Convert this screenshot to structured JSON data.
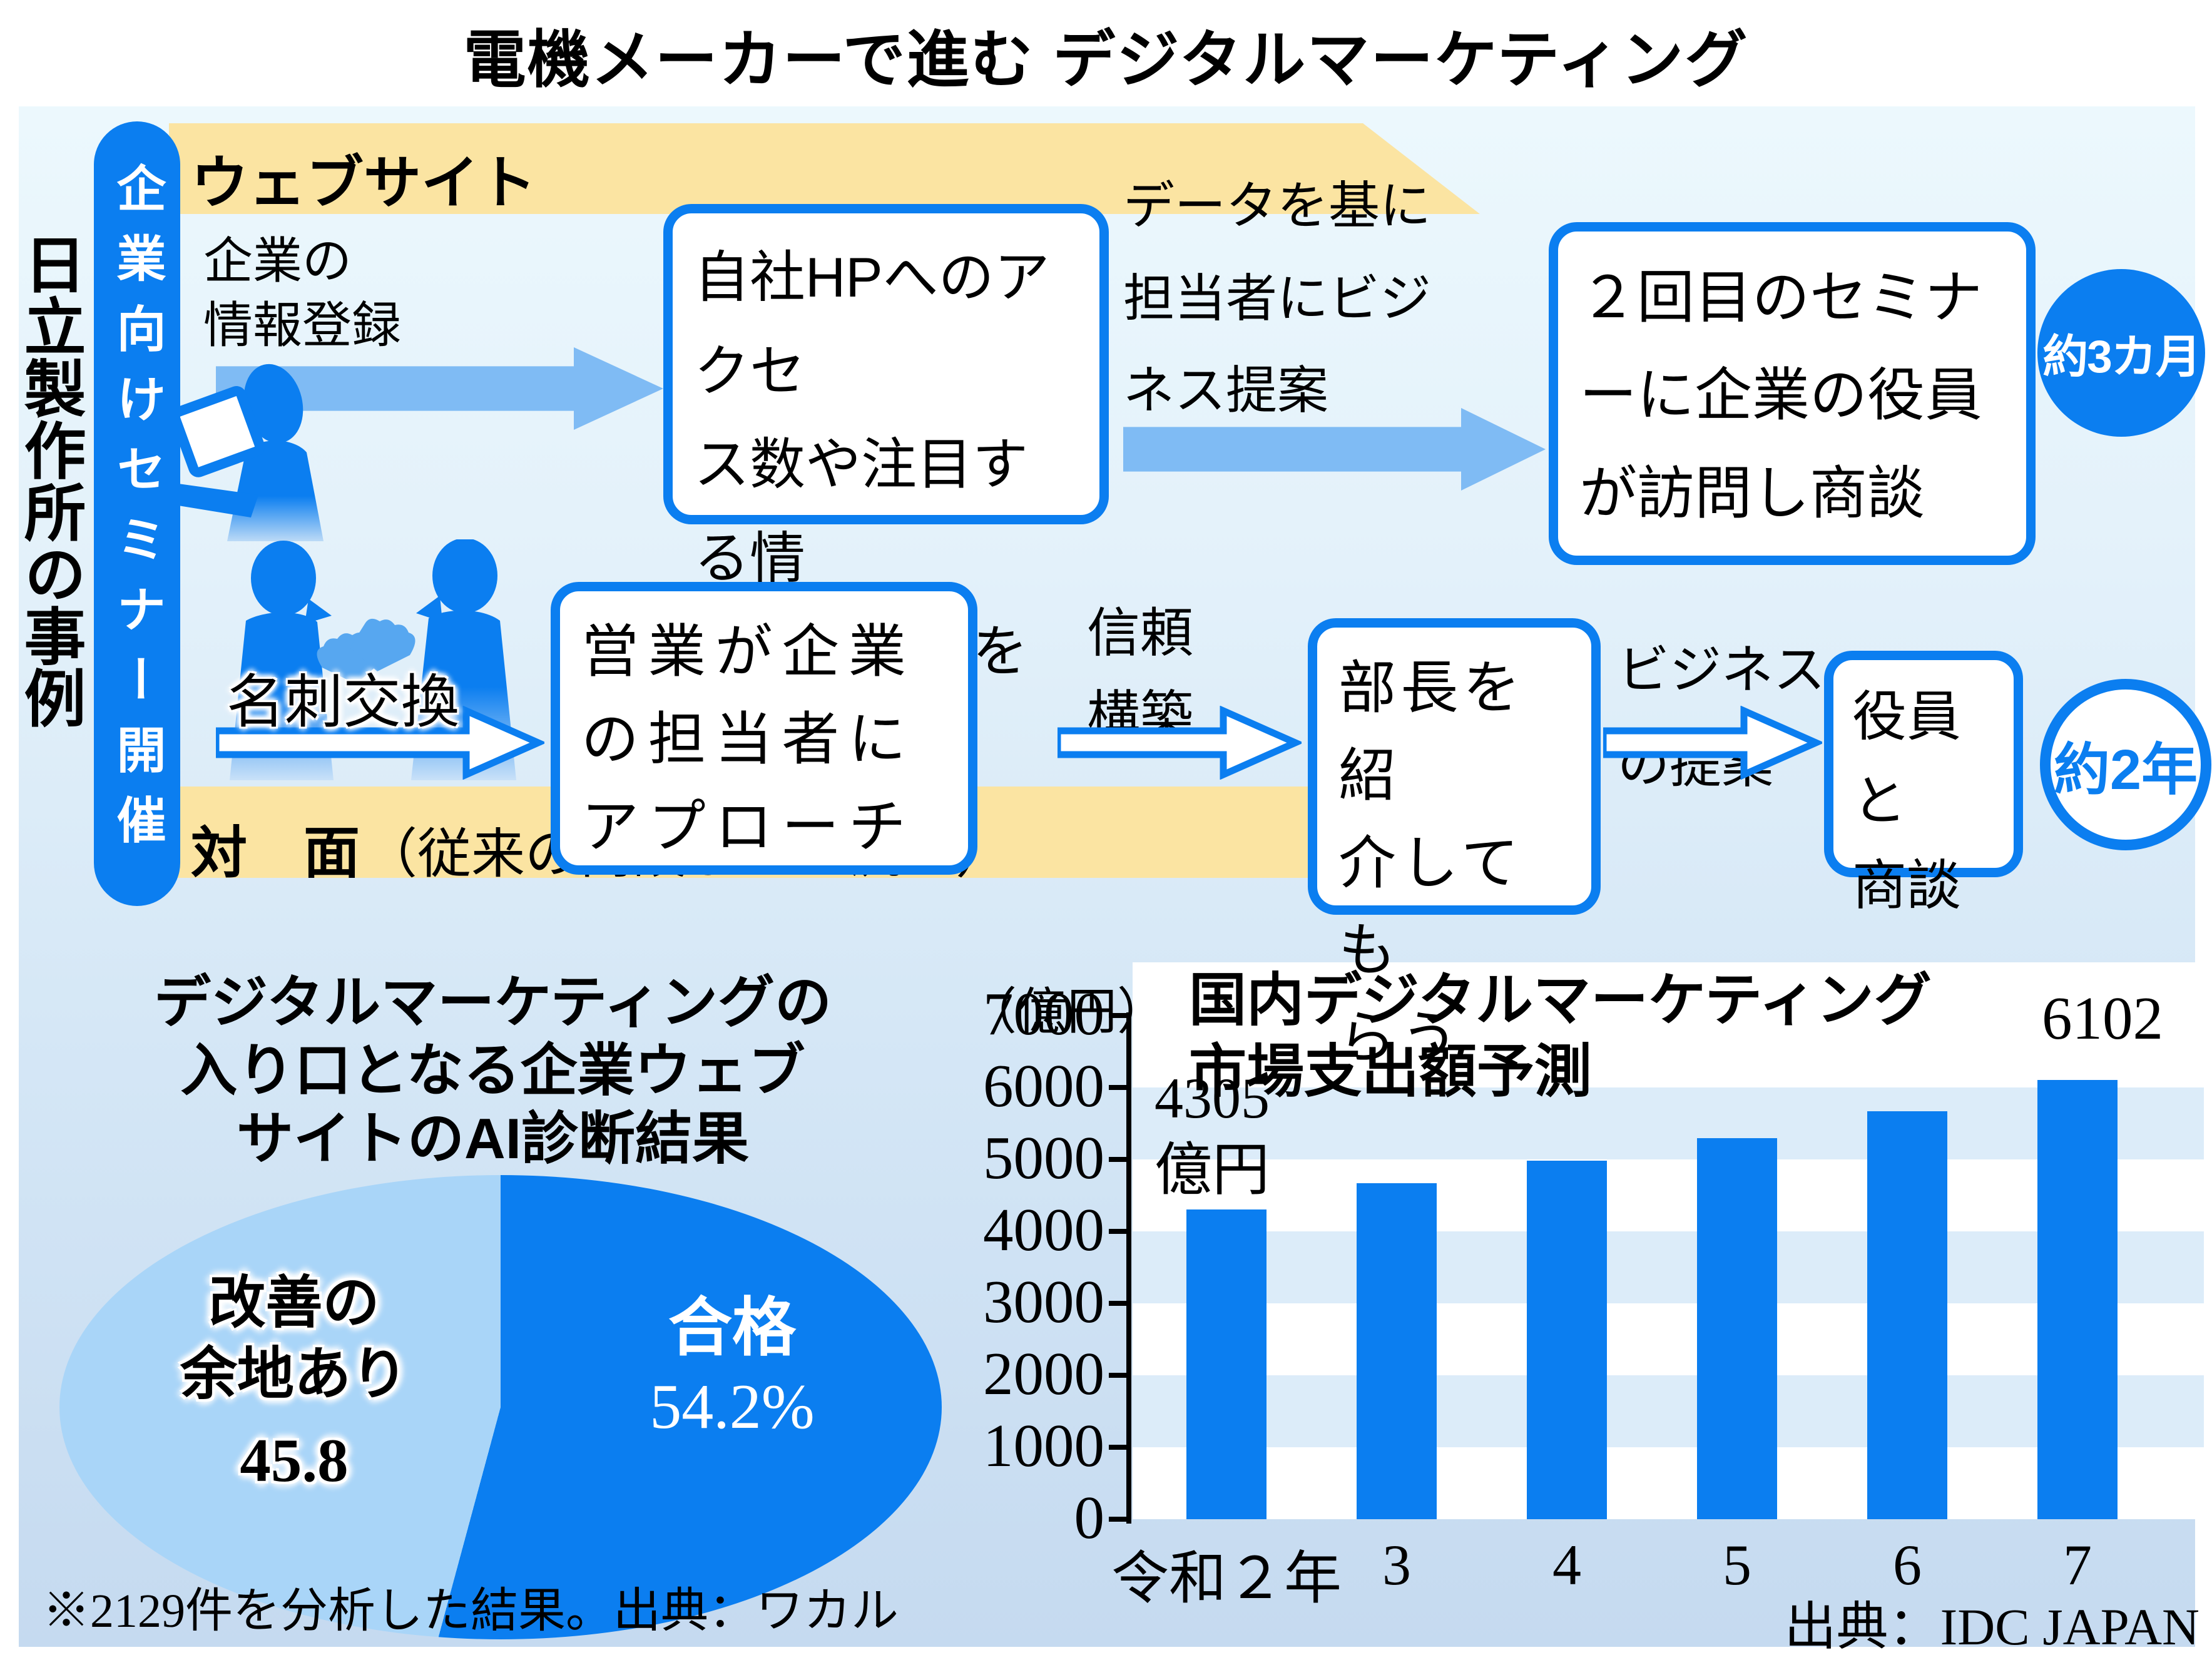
{
  "colors": {
    "primary": "#0b7ef0",
    "arrow_light": "#7fbbf4",
    "yellow": "#fbe4a2",
    "stripe": "#dcecf9",
    "pie_light": "#a9d5f8",
    "bg_top": "#ecf8fd",
    "bg_bottom": "#c5daf0"
  },
  "title": "電機メーカーで進む デジタルマーケティング",
  "case_label": "日立製作所の事例",
  "seminar_pill": "企業向けセミナー開催",
  "web_flow": {
    "band_label": "ウェブサイト",
    "step1_label": "企業の\n情報登録",
    "box1": "自社HPへのアクセ\nス数や注目する情\n報のデータを収集",
    "arrow2_label": "データを基に\n担当者にビジ\nネス提案",
    "box2": "２回目のセミナ\nーに企業の役員\nが訪問し商談",
    "duration": "約3カ月"
  },
  "face_flow": {
    "band_label_bold": "対　面",
    "band_label_note": "（従来の商談までの流れ）",
    "step1_label": "名刺交換",
    "box1": "営業が企業\nの担当者に\nアプローチ",
    "arrow2_label": "信頼\n構築",
    "box2": "部長を紹\n介しても\nらう",
    "arrow3_label": "ビジネス\nの提案",
    "box3": "役員と\n商談",
    "duration": "約2年"
  },
  "chart_data": [
    {
      "type": "pie",
      "title": "デジタルマーケティングの\n入り口となる企業ウェブ\nサイトのAI診断結果",
      "slices": [
        {
          "label": "合格",
          "value": 54.2,
          "display": "54.2%",
          "color": "#0b7ef0"
        },
        {
          "label": "改善の\n余地あり",
          "value": 45.8,
          "display": "45.8",
          "color": "#a9d5f8"
        }
      ],
      "legend_position": "inside",
      "note": "※2129件を分析した結果。出典：ワカル"
    },
    {
      "type": "bar",
      "title": "国内デジタルマーケティング\n市場支出額予測",
      "unit_label": "（億円）",
      "categories": [
        "令和２年",
        "3",
        "4",
        "5",
        "6",
        "7"
      ],
      "values": [
        4305,
        4670,
        4980,
        5300,
        5670,
        6102
      ],
      "first_bar_label": "4305\n億円",
      "last_bar_label": "6102",
      "ylim": [
        0,
        7000
      ],
      "ytick_step": 1000,
      "grid": "alternating horizontal bands",
      "source": "出典：IDC JAPAN"
    }
  ]
}
